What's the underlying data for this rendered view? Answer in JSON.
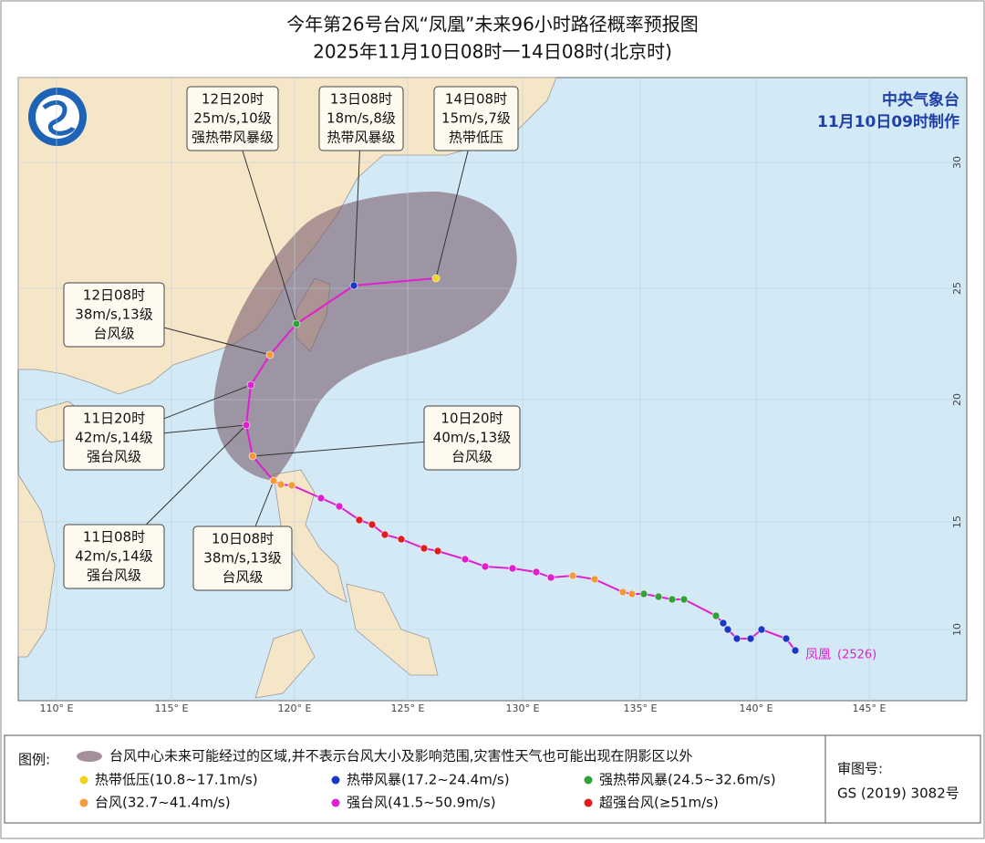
{
  "title": {
    "line1": "今年第26号台风“凤凰”未来96小时路径概率预报图",
    "line2": "2025年11月10日08时一14日08时(北京时)"
  },
  "agency": {
    "name": "中央气象台",
    "issued": "11月10日09时制作"
  },
  "forecast_labels": [
    {
      "time": "12日20时",
      "wind": "25m/s,10级",
      "level": "强热带风暴级"
    },
    {
      "time": "13日08时",
      "wind": "18m/s,8级",
      "level": "热带风暴级"
    },
    {
      "time": "14日08时",
      "wind": "15m/s,7级",
      "level": "热带低压"
    },
    {
      "time": "12日08时",
      "wind": "38m/s,13级",
      "level": "台风级"
    },
    {
      "time": "11日20时",
      "wind": "42m/s,14级",
      "level": "强台风级"
    },
    {
      "time": "10日20时",
      "wind": "40m/s,13级",
      "level": "台风级"
    },
    {
      "time": "11日08时",
      "wind": "42m/s,14级",
      "level": "强台风级"
    },
    {
      "time": "10日08时",
      "wind": "38m/s,13级",
      "level": "台风级"
    }
  ],
  "storm_label": {
    "name": "凤凰",
    "number": "(2526)"
  },
  "axes": {
    "longitude": [
      "110° E",
      "115° E",
      "120° E",
      "125° E",
      "130° E",
      "135° E",
      "140° E",
      "145° E"
    ],
    "latitude": [
      "30",
      "25",
      "20",
      "15",
      "10"
    ]
  },
  "legend": {
    "title": "图例:",
    "cone": "台风中心未来可能经过的区域,并不表示台风大小及影响范围,灾害性天气也可能出现在阴影区以外",
    "categories": [
      "热带低压(10.8~17.1m/s)",
      "热带风暴(17.2~24.4m/s)",
      "强热带风暴(24.5~32.6m/s)",
      "台风(32.7~41.4m/s)",
      "强台风(41.5~50.9m/s)",
      "超强台风(≥51m/s)"
    ]
  },
  "approval": {
    "label": "审图号:",
    "number": "GS (2019) 3082号"
  }
}
